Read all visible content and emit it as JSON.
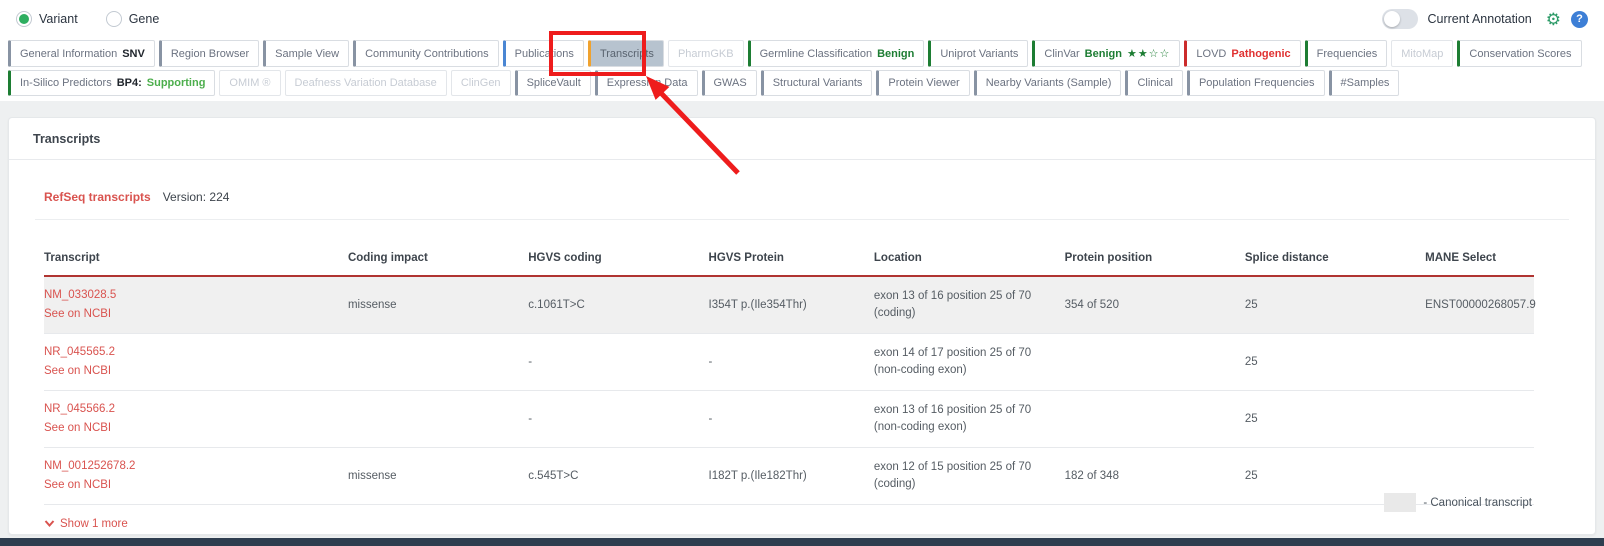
{
  "top_bar": {
    "radios": [
      {
        "label": "Variant",
        "selected": true
      },
      {
        "label": "Gene",
        "selected": false
      }
    ],
    "toggle_label": "Current Annotation",
    "toggle_on": false,
    "icons": [
      "gear-icon",
      "help-icon"
    ]
  },
  "tabs_row1": [
    {
      "label": "General Information",
      "badge_dark": "SNV",
      "accent": "gray"
    },
    {
      "label": "Region Browser",
      "accent": "gray"
    },
    {
      "label": "Sample View",
      "accent": "gray"
    },
    {
      "label": "Community Contributions",
      "accent": "gray"
    },
    {
      "label": "Publications",
      "accent": "blue"
    },
    {
      "label": "Transcripts",
      "accent": "orange",
      "selected": true
    },
    {
      "label": "PharmGKB",
      "disabled": true
    },
    {
      "label": "Germline Classification",
      "badge": "Benign",
      "badge_color": "green",
      "accent": "green"
    },
    {
      "label": "Uniprot Variants",
      "accent": "green"
    },
    {
      "label": "ClinVar",
      "badge": "Benign",
      "badge_color": "green",
      "stars": "★★☆☆",
      "accent": "green"
    },
    {
      "label": "LOVD",
      "badge": "Pathogenic",
      "badge_color": "red",
      "accent": "red"
    },
    {
      "label": "Frequencies",
      "accent": "green"
    },
    {
      "label": "MitoMap",
      "disabled": true
    },
    {
      "label": "Conservation Scores",
      "accent": "green"
    }
  ],
  "tabs_row2": [
    {
      "label": "In-Silico Predictors",
      "badge_dark": "BP4:",
      "badge": "Supporting",
      "badge_color": "lightgreen",
      "accent": "green"
    },
    {
      "label": "OMIM ®",
      "disabled": true
    },
    {
      "label": "Deafness Variation Database",
      "disabled": true
    },
    {
      "label": "ClinGen",
      "disabled": true
    },
    {
      "label": "SpliceVault",
      "accent": "gray"
    },
    {
      "label": "Expression Data",
      "accent": "gray"
    },
    {
      "label": "GWAS",
      "accent": "gray"
    },
    {
      "label": "Structural Variants",
      "accent": "gray"
    },
    {
      "label": "Protein Viewer",
      "accent": "gray"
    },
    {
      "label": "Nearby Variants (Sample)",
      "accent": "gray"
    },
    {
      "label": "Clinical",
      "accent": "gray"
    },
    {
      "label": "Population Frequencies",
      "accent": "gray"
    },
    {
      "label": "#Samples",
      "accent": "gray"
    }
  ],
  "panel": {
    "title": "Transcripts",
    "source_link": "RefSeq transcripts",
    "version": "Version: 224",
    "show_more_label": "Show 1 more",
    "legend_label": "- Canonical transcript"
  },
  "table": {
    "columns": [
      "Transcript",
      "Coding impact",
      "HGVS coding",
      "HGVS Protein",
      "Location",
      "Protein position",
      "Splice distance",
      "MANE Select"
    ],
    "rows": [
      {
        "transcript": "NM_033028.5",
        "ncbi_link": "See on NCBI",
        "coding_impact": "missense",
        "hgvs_coding": "c.1061T>C",
        "hgvs_protein": "I354T p.(Ile354Thr)",
        "location": "exon 13 of 16 position 25 of 70",
        "location_type": "(coding)",
        "protein_position": "354 of 520",
        "splice_distance": "25",
        "mane_select": "ENST00000268057.9",
        "canonical": true
      },
      {
        "transcript": "NR_045565.2",
        "ncbi_link": "See on NCBI",
        "coding_impact": "",
        "hgvs_coding": "-",
        "hgvs_protein": "-",
        "location": "exon 14 of 17 position 25 of 70",
        "location_type": "(non-coding exon)",
        "protein_position": "",
        "splice_distance": "25",
        "mane_select": "",
        "canonical": false
      },
      {
        "transcript": "NR_045566.2",
        "ncbi_link": "See on NCBI",
        "coding_impact": "",
        "hgvs_coding": "-",
        "hgvs_protein": "-",
        "location": "exon 13 of 16 position 25 of 70",
        "location_type": "(non-coding exon)",
        "protein_position": "",
        "splice_distance": "25",
        "mane_select": "",
        "canonical": false
      },
      {
        "transcript": "NM_001252678.2",
        "ncbi_link": "See on NCBI",
        "coding_impact": "missense",
        "hgvs_coding": "c.545T>C",
        "hgvs_protein": "I182T p.(Ile182Thr)",
        "location": "exon 12 of 15 position 25 of 70",
        "location_type": "(coding)",
        "protein_position": "182 of 348",
        "splice_distance": "25",
        "mane_select": "",
        "canonical": false
      }
    ]
  },
  "colors": {
    "accent_green": "#1d7d33",
    "accent_red": "#cc2b2b",
    "accent_orange": "#f0a22e",
    "accent_blue": "#4a86d3",
    "accent_gray": "#8893a3",
    "selected_tab_bg": "#b7c3cf",
    "link_red": "#d9534f",
    "table_header_border": "#b03431",
    "annotation_red": "#ee1c1c",
    "benign_green": "#1d7d33",
    "pathogenic_red": "#e03131",
    "supporting_green": "#4cae4c",
    "canonical_row_bg": "#f0f0f0",
    "footer_bar": "#2e3d4f"
  }
}
